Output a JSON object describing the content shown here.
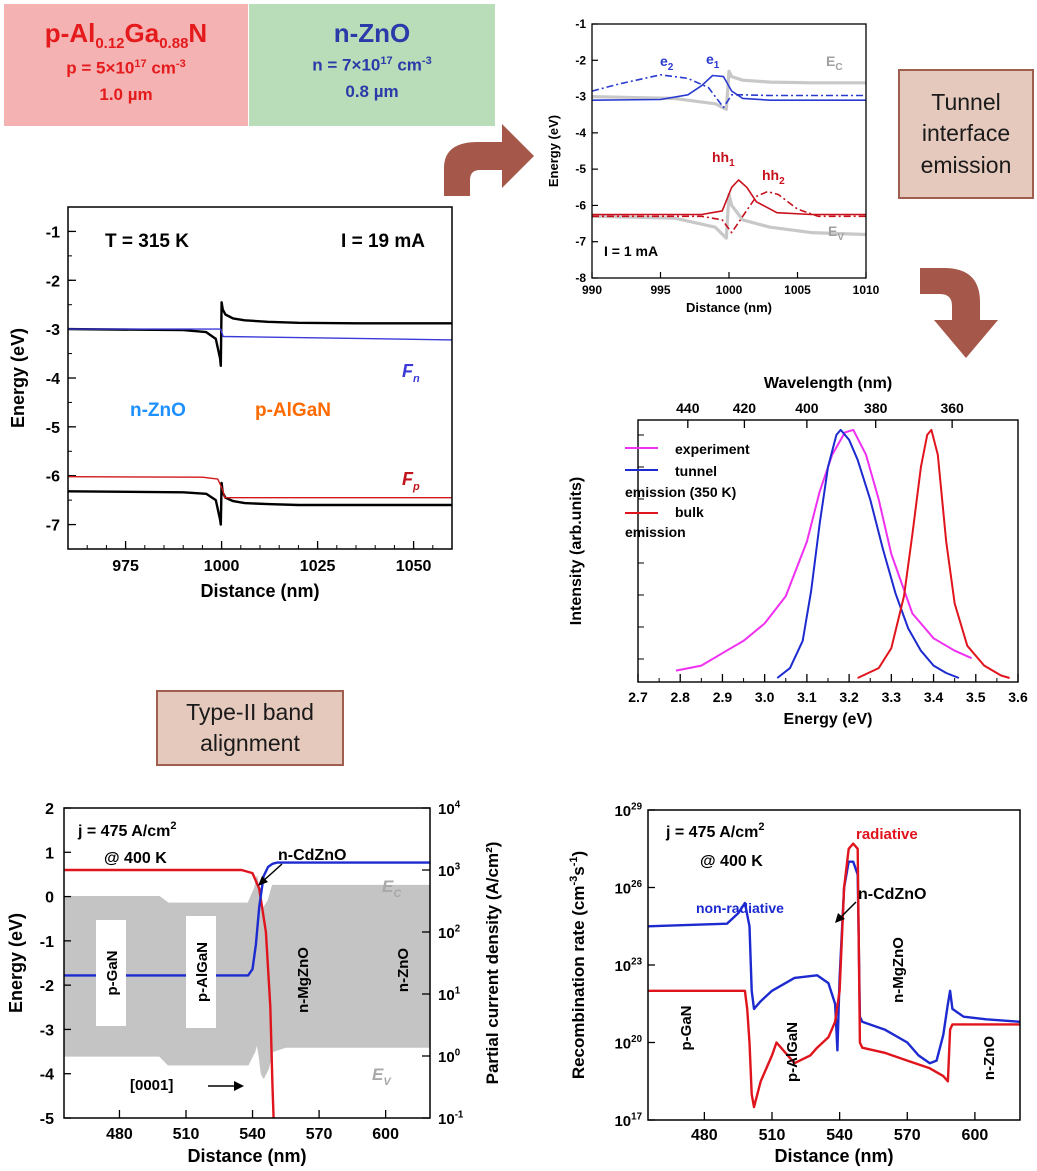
{
  "colors": {
    "p_box": "#f4b2b2",
    "n_box": "#b9ddb8",
    "note_bg": "#e5c9bd",
    "arrow": "#a5574a",
    "red": "#d0181c",
    "blue": "#1c2ad0",
    "magenta": "#f030f0",
    "gray": "#bfbfbf"
  },
  "layer_p": {
    "title_main": "p-Al",
    "title_sub1": "0.12",
    "title_mid": "Ga",
    "title_sub2": "0.88",
    "title_end": "N",
    "doping_pre": "p = 5×10",
    "doping_exp": "17",
    "doping_unit": " cm",
    "doping_unit_exp": "-3",
    "thickness": "1.0 µm"
  },
  "layer_n": {
    "title": "n-ZnO",
    "doping_pre": "n = 7×10",
    "doping_exp": "17",
    "doping_unit": " cm",
    "doping_unit_exp": "-3",
    "thickness": "0.8 µm"
  },
  "notes": {
    "tunnel_l1": "Tunnel",
    "tunnel_l2": "interface",
    "tunnel_l3": "emission",
    "type2_l1": "Type-II band",
    "type2_l2": "alignment"
  },
  "chart_data": [
    {
      "id": "band_diagram_315K",
      "type": "line",
      "ylabel": "Energy (eV)",
      "xlabel": "Distance (nm)",
      "xlim": [
        960,
        1060
      ],
      "ylim": [
        -7.5,
        -0.5
      ],
      "xticks": [
        "975",
        "1000",
        "1025",
        "1050"
      ],
      "yticks": [
        "-1",
        "-2",
        "-3",
        "-4",
        "-5",
        "-6",
        "-7"
      ],
      "annotations": {
        "temp": "T = 315 K",
        "current": "I = 19 mA",
        "n_label": "n-ZnO",
        "p_label": "p-AlGaN",
        "fn_main": "F",
        "fn_sub": "n",
        "fp_main": "F",
        "fp_sub": "p"
      },
      "series": [
        {
          "color": "#000000",
          "x": [
            960,
            990,
            996,
            998.5,
            999.6,
            999.8,
            1000,
            1000.3,
            1001,
            1003,
            1006,
            1012,
            1020,
            1035,
            1060
          ],
          "y": [
            -3.0,
            -3.02,
            -3.06,
            -3.2,
            -3.6,
            -3.75,
            -2.45,
            -2.6,
            -2.7,
            -2.78,
            -2.82,
            -2.85,
            -2.87,
            -2.88,
            -2.88
          ]
        },
        {
          "color": "#3a3ad8",
          "x": [
            960,
            999.8,
            1000.4,
            1060
          ],
          "y": [
            -3.0,
            -3.0,
            -3.15,
            -3.22
          ]
        },
        {
          "color": "#000000",
          "x": [
            960,
            990,
            996,
            998.5,
            999.6,
            999.8,
            1000,
            1000.3,
            1001,
            1003,
            1006,
            1012,
            1020,
            1035,
            1060
          ],
          "y": [
            -6.32,
            -6.34,
            -6.37,
            -6.5,
            -6.9,
            -7.0,
            -6.15,
            -6.35,
            -6.45,
            -6.52,
            -6.56,
            -6.58,
            -6.6,
            -6.6,
            -6.6
          ]
        },
        {
          "color": "#d0181c",
          "x": [
            960,
            995,
            999,
            999.9,
            1000.3,
            1000.8,
            1060
          ],
          "y": [
            -6.02,
            -6.03,
            -6.07,
            -6.22,
            -6.3,
            -6.45,
            -6.45
          ]
        }
      ]
    },
    {
      "id": "band_zoom",
      "type": "line",
      "ylabel": "Energy (eV)",
      "xlabel": "Distance (nm)",
      "xlim": [
        990,
        1010
      ],
      "ylim": [
        -8,
        -1
      ],
      "xticks": [
        "990",
        "995",
        "1000",
        "1005",
        "1010"
      ],
      "yticks": [
        "-1",
        "-2",
        "-3",
        "-4",
        "-5",
        "-6",
        "-7",
        "-8"
      ],
      "annotations": {
        "current": "I = 1 mA",
        "e2": "e",
        "e2_sub": "2",
        "e1": "e",
        "e1_sub": "1",
        "hh1": "hh",
        "hh1_sub": "1",
        "hh2": "hh",
        "hh2_sub": "2",
        "ec": "E",
        "ec_sub": "C",
        "ev": "E",
        "ev_sub": "V"
      },
      "series": [
        {
          "name": "Ec",
          "color": "#c8c8c8",
          "x": [
            990,
            996,
            999,
            999.8,
            1000,
            1000.2,
            1001,
            1003,
            1006,
            1010
          ],
          "y": [
            -3.0,
            -3.05,
            -3.2,
            -3.35,
            -2.3,
            -2.45,
            -2.55,
            -2.6,
            -2.62,
            -2.62
          ]
        },
        {
          "name": "Ev",
          "color": "#c8c8c8",
          "x": [
            990,
            996,
            999,
            999.8,
            1000,
            1000.2,
            1001,
            1003,
            1006,
            1010
          ],
          "y": [
            -6.3,
            -6.35,
            -6.6,
            -6.9,
            -5.7,
            -6.0,
            -6.4,
            -6.6,
            -6.75,
            -6.8
          ]
        },
        {
          "name": "e1",
          "color": "#2a3ad0",
          "x": [
            990,
            995,
            997,
            998,
            998.8,
            999.6,
            1000.2,
            1001,
            1003,
            1010
          ],
          "y": [
            -3.1,
            -3.08,
            -2.95,
            -2.7,
            -2.42,
            -2.45,
            -2.85,
            -3.05,
            -3.1,
            -3.1
          ]
        },
        {
          "name": "e2",
          "color": "#2a3ad0",
          "x": [
            990,
            992,
            995,
            997,
            998.5,
            999.6,
            1000.2,
            1001,
            1003,
            1010
          ],
          "y": [
            -2.85,
            -2.65,
            -2.4,
            -2.5,
            -2.75,
            -3.3,
            -2.95,
            -2.95,
            -2.97,
            -2.97
          ]
        },
        {
          "name": "hh1",
          "color": "#c8101c",
          "x": [
            990,
            998,
            999.5,
            1000.2,
            1000.7,
            1001.3,
            1002,
            1003.5,
            1006,
            1010
          ],
          "y": [
            -6.25,
            -6.25,
            -6.15,
            -5.5,
            -5.3,
            -5.5,
            -5.9,
            -6.2,
            -6.25,
            -6.25
          ]
        },
        {
          "name": "hh2",
          "color": "#c8101c",
          "x": [
            990,
            998,
            999.5,
            1000.2,
            1001,
            1002,
            1002.8,
            1003.6,
            1005,
            1006.5,
            1010
          ],
          "y": [
            -6.3,
            -6.3,
            -6.4,
            -6.75,
            -6.3,
            -5.75,
            -5.62,
            -5.7,
            -6.1,
            -6.3,
            -6.3
          ]
        }
      ]
    },
    {
      "id": "spectra",
      "type": "line",
      "ylabel": "Intensity (arb.units)",
      "xlabel": "Energy (eV)",
      "x2label": "Wavelength (nm)",
      "xlim": [
        2.7,
        3.6
      ],
      "xticks": [
        "2.7",
        "2.8",
        "2.9",
        "3.0",
        "3.1",
        "3.2",
        "3.3",
        "3.4",
        "3.5",
        "3.6"
      ],
      "x2ticks": [
        "440",
        "420",
        "400",
        "380",
        "360"
      ],
      "x2tick_positions_ev": [
        2.818,
        2.952,
        3.1,
        3.263,
        3.444
      ],
      "legend": [
        "experiment",
        "tunnel",
        "emission (350 K)",
        "bulk",
        "emission"
      ],
      "series": [
        {
          "name": "experiment",
          "color": "#f030f0",
          "x": [
            2.79,
            2.85,
            2.9,
            2.95,
            3.0,
            3.05,
            3.1,
            3.13,
            3.16,
            3.19,
            3.21,
            3.24,
            3.27,
            3.3,
            3.35,
            3.4,
            3.45,
            3.49
          ],
          "y": [
            0.03,
            0.05,
            0.1,
            0.15,
            0.22,
            0.33,
            0.55,
            0.75,
            0.9,
            0.99,
            1.0,
            0.9,
            0.72,
            0.5,
            0.26,
            0.16,
            0.11,
            0.08
          ]
        },
        {
          "name": "tunnel emission (350 K)",
          "color": "#1c2ad0",
          "x": [
            3.03,
            3.06,
            3.09,
            3.11,
            3.13,
            3.15,
            3.17,
            3.18,
            3.2,
            3.22,
            3.25,
            3.28,
            3.31,
            3.34,
            3.37,
            3.4,
            3.43,
            3.46
          ],
          "y": [
            0.0,
            0.04,
            0.15,
            0.35,
            0.62,
            0.85,
            0.98,
            1.0,
            0.96,
            0.88,
            0.72,
            0.52,
            0.34,
            0.2,
            0.11,
            0.05,
            0.02,
            0.0
          ]
        },
        {
          "name": "bulk emission",
          "color": "#e0141c",
          "x": [
            3.22,
            3.27,
            3.3,
            3.33,
            3.35,
            3.37,
            3.385,
            3.395,
            3.41,
            3.43,
            3.45,
            3.48,
            3.52,
            3.56,
            3.58
          ],
          "y": [
            0.0,
            0.04,
            0.12,
            0.33,
            0.58,
            0.85,
            0.98,
            1.0,
            0.9,
            0.55,
            0.3,
            0.13,
            0.05,
            0.01,
            0.0
          ]
        }
      ]
    },
    {
      "id": "band_current_400K",
      "type": "area",
      "ylabel": "Energy (eV)",
      "y2label": "Partial current density (A/cm²)",
      "xlabel": "Distance (nm)",
      "xlim": [
        455,
        620
      ],
      "ylim": [
        -5,
        2
      ],
      "xticks": [
        "480",
        "510",
        "540",
        "570",
        "600"
      ],
      "yticks": [
        "2",
        "1",
        "0",
        "-1",
        "-2",
        "-3",
        "-4",
        "-5"
      ],
      "y2ticks": [
        {
          "b": "10",
          "e": "4"
        },
        {
          "b": "10",
          "e": "3"
        },
        {
          "b": "10",
          "e": "2"
        },
        {
          "b": "10",
          "e": "1"
        },
        {
          "b": "10",
          "e": "0"
        },
        {
          "b": "10",
          "e": "-1"
        }
      ],
      "annotations": {
        "j_main": "j = 475 A/cm",
        "j_exp": "2",
        "temp": "@ 400 K",
        "cdzno": "n-CdZnO",
        "ec": "E",
        "ec_sub": "C",
        "ev": "E",
        "ev_sub": "V",
        "dir": "[0001]",
        "layers": [
          "p-GaN",
          "p-AlGaN",
          "n-MgZnO",
          "n-ZnO"
        ]
      },
      "series": [
        {
          "name": "Ec",
          "color": "#c0c0c0",
          "x": [
            455,
            498,
            502,
            538,
            541,
            542,
            543,
            544,
            545,
            547,
            549,
            555,
            590,
            620
          ],
          "y": [
            0.0,
            0.0,
            -0.15,
            -0.15,
            0.2,
            0.45,
            0.1,
            -0.25,
            -0.25,
            -0.1,
            0.25,
            0.25,
            0.25,
            0.25
          ]
        },
        {
          "name": "Ev",
          "color": "#c0c0c0",
          "x": [
            455,
            498,
            502,
            538,
            541,
            542,
            543,
            544,
            545,
            547,
            549,
            555,
            590,
            620
          ],
          "y": [
            -3.6,
            -3.6,
            -3.8,
            -3.8,
            -3.5,
            -3.3,
            -3.6,
            -4.0,
            -4.1,
            -3.9,
            -3.5,
            -3.4,
            -3.4,
            -3.4
          ]
        },
        {
          "name": "hole current (log)",
          "color": "#e0141c",
          "x": [
            455,
            535,
            540,
            543,
            546,
            548,
            549,
            549.5
          ],
          "y": [
            3.0,
            3.0,
            2.95,
            2.7,
            2.0,
            0.8,
            -0.5,
            -1.0
          ]
        },
        {
          "name": "electron current (log)",
          "color": "#1c2ad0",
          "x": [
            455,
            538,
            540,
            541.5,
            543,
            545,
            547,
            549,
            551,
            620
          ],
          "y": [
            1.3,
            1.3,
            1.4,
            1.8,
            2.4,
            2.9,
            3.05,
            3.1,
            3.12,
            3.12
          ]
        }
      ]
    },
    {
      "id": "recombination_400K",
      "type": "line",
      "ylabel": "Recombination rate (cm⁻³s⁻¹)",
      "xlabel": "Distance (nm)",
      "xlim": [
        455,
        620
      ],
      "ylim": [
        17,
        29
      ],
      "xticks": [
        "480",
        "510",
        "540",
        "570",
        "600"
      ],
      "yticks": [
        {
          "b": "10",
          "e": "29"
        },
        {
          "b": "10",
          "e": "26"
        },
        {
          "b": "10",
          "e": "23"
        },
        {
          "b": "10",
          "e": "20"
        },
        {
          "b": "10",
          "e": "17"
        }
      ],
      "annotations": {
        "j_main": "j = 475 A/cm",
        "j_exp": "2",
        "temp": "@ 400 K",
        "radiative": "radiative",
        "nonrad": "non-radiative",
        "cdzno": "n-CdZnO",
        "layers": [
          "p-GaN",
          "p-AlGaN",
          "n-MgZnO",
          "n-ZnO"
        ]
      },
      "series": [
        {
          "name": "non-radiative",
          "color": "#1c2ad0",
          "x": [
            455,
            490,
            495,
            498,
            500,
            501,
            502,
            505,
            510,
            520,
            530,
            535,
            538,
            539,
            540,
            542,
            544,
            546,
            548,
            549,
            550,
            560,
            570,
            575,
            580,
            583,
            586,
            588,
            589,
            590,
            595,
            605,
            620
          ],
          "y": [
            24.5,
            24.6,
            25.0,
            25.4,
            24.5,
            22.0,
            21.3,
            21.6,
            22.0,
            22.5,
            22.6,
            22.3,
            21.5,
            19.7,
            22.5,
            26.0,
            27.0,
            27.0,
            26.5,
            21.0,
            20.8,
            20.5,
            20.0,
            19.5,
            19.2,
            19.3,
            20.3,
            21.5,
            22.0,
            21.3,
            21.0,
            20.9,
            20.8
          ]
        },
        {
          "name": "radiative",
          "color": "#e0141c",
          "x": [
            455,
            490,
            498,
            499,
            500,
            501,
            502,
            505,
            510,
            512,
            520,
            527,
            530,
            535,
            538,
            540,
            542,
            544,
            546,
            548,
            549,
            550,
            560,
            570,
            580,
            586,
            588,
            589,
            590,
            620
          ],
          "y": [
            22.0,
            22.0,
            22.0,
            21.3,
            20.0,
            18.0,
            17.5,
            18.5,
            19.5,
            20.0,
            19.2,
            19.5,
            19.8,
            20.2,
            20.8,
            22.0,
            26.0,
            27.5,
            27.7,
            27.5,
            20.0,
            19.8,
            19.6,
            19.3,
            19.0,
            18.7,
            18.5,
            20.5,
            20.7,
            20.7
          ]
        }
      ]
    }
  ]
}
